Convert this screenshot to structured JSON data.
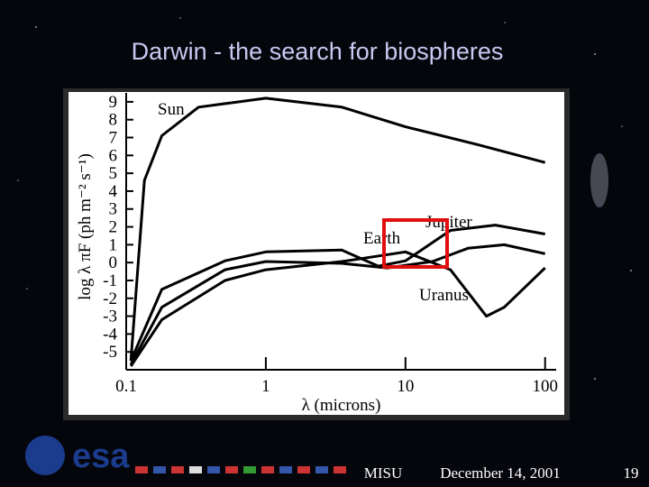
{
  "slide": {
    "title": "Darwin - the search for biospheres",
    "logo": "esa",
    "footer_left": "MISU",
    "footer_date": "December 14, 2001",
    "page_number": "19"
  },
  "chart_data": {
    "type": "line",
    "x_label": "λ (microns)",
    "y_label": "log λ πF (ph m⁻² s⁻¹)",
    "xscale": "log",
    "xlim": [
      0.1,
      120
    ],
    "xticks": [
      0.1,
      1,
      10,
      100
    ],
    "ylim": [
      -6,
      9.5
    ],
    "yticks": [
      9,
      8,
      7,
      6,
      5,
      4,
      3,
      2,
      1,
      0,
      -1,
      -2,
      -3,
      -4,
      -5
    ],
    "series": [
      {
        "name": "Sun",
        "color": "#000000",
        "x": [
          0.108,
          0.135,
          0.18,
          0.33,
          1,
          3.5,
          10,
          33,
          100
        ],
        "values": [
          -5.5,
          4.6,
          7.1,
          8.7,
          9.2,
          8.7,
          7.6,
          6.6,
          5.6
        ]
      },
      {
        "name": "Jupiter",
        "color": "#000000",
        "x": [
          0.108,
          0.18,
          0.51,
          1,
          3.5,
          6.4,
          10,
          21,
          44,
          100
        ],
        "values": [
          -5.5,
          -1.5,
          0.1,
          0.6,
          0.7,
          -0.2,
          0.1,
          1.8,
          2.1,
          1.6
        ]
      },
      {
        "name": "Earth",
        "color": "#000000",
        "x": [
          0.108,
          0.18,
          0.51,
          1,
          3.5,
          7.4,
          15.6,
          28,
          51,
          100
        ],
        "values": [
          -5.7,
          -2.5,
          -0.4,
          0.06,
          -0.04,
          -0.3,
          0.06,
          0.8,
          1.0,
          0.5
        ]
      },
      {
        "name": "Uranus",
        "color": "#000000",
        "x": [
          0.108,
          0.18,
          0.51,
          1,
          3.5,
          10,
          21,
          38,
          51,
          100
        ],
        "values": [
          -5.8,
          -3.2,
          -1.0,
          -0.4,
          0.06,
          0.6,
          -0.4,
          -3.0,
          -2.5,
          -0.3
        ]
      }
    ]
  }
}
